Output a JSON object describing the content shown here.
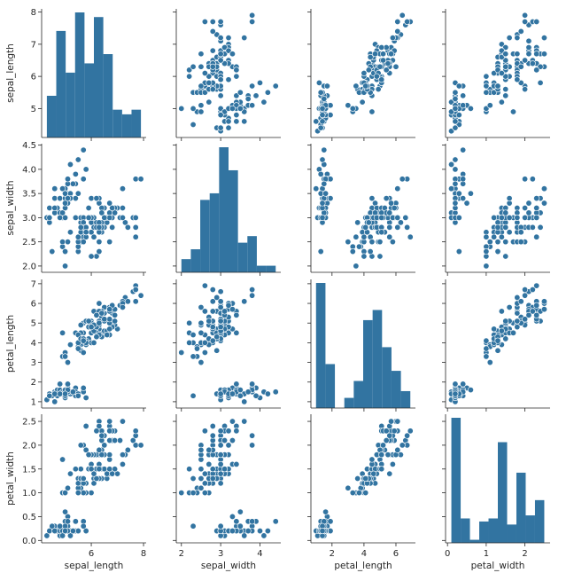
{
  "chart_data": {
    "type": "scatter",
    "title": "",
    "variables": [
      "sepal_length",
      "sepal_width",
      "petal_length",
      "petal_width"
    ],
    "axis_labels": {
      "x": [
        "sepal_length",
        "sepal_width",
        "petal_length",
        "petal_width"
      ],
      "y": [
        "sepal_length",
        "sepal_width",
        "petal_length",
        "petal_width"
      ]
    },
    "ranges": {
      "sepal_length": [
        4.1,
        8.1
      ],
      "sepal_width": [
        1.87,
        4.53
      ],
      "petal_length": [
        0.68,
        7.22
      ],
      "petal_width": [
        -0.05,
        2.65
      ]
    },
    "ticks": {
      "x": {
        "sepal_length": [
          "6",
          "8"
        ],
        "sepal_width": [
          "2",
          "3",
          "4"
        ],
        "petal_length": [
          "2",
          "4",
          "6"
        ],
        "petal_width": [
          "0",
          "1",
          "2"
        ]
      },
      "y": {
        "sepal_length": [
          "5",
          "6",
          "7",
          "8"
        ],
        "sepal_width": [
          "2.0",
          "2.5",
          "3.0",
          "3.5",
          "4.0",
          "4.5"
        ],
        "petal_length": [
          "1",
          "2",
          "3",
          "4",
          "5",
          "6",
          "7"
        ],
        "petal_width": [
          "0.0",
          "0.5",
          "1.0",
          "1.5",
          "2.0",
          "2.5"
        ]
      }
    },
    "histograms": {
      "sepal_length": {
        "bins": [
          4.3,
          4.66,
          5.02,
          5.38,
          5.74,
          6.1,
          6.46,
          6.82,
          7.18,
          7.54,
          7.9
        ],
        "counts": [
          9,
          23,
          14,
          27,
          16,
          26,
          18,
          6,
          5,
          6
        ]
      },
      "sepal_width": {
        "bins": [
          2.0,
          2.24,
          2.48,
          2.72,
          2.96,
          3.2,
          3.44,
          3.68,
          3.92,
          4.16,
          4.4
        ],
        "counts": [
          4,
          7,
          22,
          24,
          38,
          31,
          9,
          11,
          2,
          2
        ]
      },
      "petal_length": {
        "bins": [
          1.0,
          1.59,
          2.18,
          2.77,
          3.36,
          3.95,
          4.54,
          5.13,
          5.72,
          6.31,
          6.9
        ],
        "counts": [
          37,
          13,
          0,
          3,
          8,
          26,
          29,
          18,
          11,
          5
        ]
      },
      "petal_width": {
        "bins": [
          0.1,
          0.34,
          0.58,
          0.82,
          1.06,
          1.3,
          1.54,
          1.78,
          2.02,
          2.26,
          2.5
        ],
        "counts": [
          41,
          8,
          1,
          7,
          8,
          33,
          6,
          23,
          9,
          14
        ]
      }
    },
    "points": [
      [
        5.1,
        3.5,
        1.4,
        0.2
      ],
      [
        4.9,
        3.0,
        1.4,
        0.2
      ],
      [
        4.7,
        3.2,
        1.3,
        0.2
      ],
      [
        4.6,
        3.1,
        1.5,
        0.2
      ],
      [
        5.0,
        3.6,
        1.4,
        0.2
      ],
      [
        5.4,
        3.9,
        1.7,
        0.4
      ],
      [
        4.6,
        3.4,
        1.4,
        0.3
      ],
      [
        5.0,
        3.4,
        1.5,
        0.2
      ],
      [
        4.4,
        2.9,
        1.4,
        0.2
      ],
      [
        4.9,
        3.1,
        1.5,
        0.1
      ],
      [
        5.4,
        3.7,
        1.5,
        0.2
      ],
      [
        4.8,
        3.4,
        1.6,
        0.2
      ],
      [
        4.8,
        3.0,
        1.4,
        0.1
      ],
      [
        4.3,
        3.0,
        1.1,
        0.1
      ],
      [
        5.8,
        4.0,
        1.2,
        0.2
      ],
      [
        5.7,
        4.4,
        1.5,
        0.4
      ],
      [
        5.4,
        3.9,
        1.3,
        0.4
      ],
      [
        5.1,
        3.5,
        1.4,
        0.3
      ],
      [
        5.7,
        3.8,
        1.7,
        0.3
      ],
      [
        5.1,
        3.8,
        1.5,
        0.3
      ],
      [
        5.4,
        3.4,
        1.7,
        0.2
      ],
      [
        5.1,
        3.7,
        1.5,
        0.4
      ],
      [
        4.6,
        3.6,
        1.0,
        0.2
      ],
      [
        5.1,
        3.3,
        1.7,
        0.5
      ],
      [
        4.8,
        3.4,
        1.9,
        0.2
      ],
      [
        5.0,
        3.0,
        1.6,
        0.2
      ],
      [
        5.0,
        3.4,
        1.6,
        0.4
      ],
      [
        5.2,
        3.5,
        1.5,
        0.2
      ],
      [
        5.2,
        3.4,
        1.4,
        0.2
      ],
      [
        4.7,
        3.2,
        1.6,
        0.2
      ],
      [
        4.8,
        3.1,
        1.6,
        0.2
      ],
      [
        5.4,
        3.4,
        1.5,
        0.4
      ],
      [
        5.2,
        4.1,
        1.5,
        0.1
      ],
      [
        5.5,
        4.2,
        1.4,
        0.2
      ],
      [
        4.9,
        3.1,
        1.5,
        0.2
      ],
      [
        5.0,
        3.2,
        1.2,
        0.2
      ],
      [
        5.5,
        3.5,
        1.3,
        0.2
      ],
      [
        4.9,
        3.6,
        1.4,
        0.1
      ],
      [
        4.4,
        3.0,
        1.3,
        0.2
      ],
      [
        5.1,
        3.4,
        1.5,
        0.2
      ],
      [
        5.0,
        3.5,
        1.3,
        0.3
      ],
      [
        4.5,
        2.3,
        1.3,
        0.3
      ],
      [
        4.4,
        3.2,
        1.3,
        0.2
      ],
      [
        5.0,
        3.5,
        1.6,
        0.6
      ],
      [
        5.1,
        3.8,
        1.9,
        0.4
      ],
      [
        4.8,
        3.0,
        1.4,
        0.3
      ],
      [
        5.1,
        3.8,
        1.6,
        0.2
      ],
      [
        4.6,
        3.2,
        1.4,
        0.2
      ],
      [
        5.3,
        3.7,
        1.5,
        0.2
      ],
      [
        5.0,
        3.3,
        1.4,
        0.2
      ],
      [
        7.0,
        3.2,
        4.7,
        1.4
      ],
      [
        6.4,
        3.2,
        4.5,
        1.5
      ],
      [
        6.9,
        3.1,
        4.9,
        1.5
      ],
      [
        5.5,
        2.3,
        4.0,
        1.3
      ],
      [
        6.5,
        2.8,
        4.6,
        1.5
      ],
      [
        5.7,
        2.8,
        4.5,
        1.3
      ],
      [
        6.3,
        3.3,
        4.7,
        1.6
      ],
      [
        4.9,
        2.4,
        3.3,
        1.0
      ],
      [
        6.6,
        2.9,
        4.6,
        1.3
      ],
      [
        5.2,
        2.7,
        3.9,
        1.4
      ],
      [
        5.0,
        2.0,
        3.5,
        1.0
      ],
      [
        5.9,
        3.0,
        4.2,
        1.5
      ],
      [
        6.0,
        2.2,
        4.0,
        1.0
      ],
      [
        6.1,
        2.9,
        4.7,
        1.4
      ],
      [
        5.6,
        2.9,
        3.6,
        1.3
      ],
      [
        6.7,
        3.1,
        4.4,
        1.4
      ],
      [
        5.6,
        3.0,
        4.5,
        1.5
      ],
      [
        5.8,
        2.7,
        4.1,
        1.0
      ],
      [
        6.2,
        2.2,
        4.5,
        1.5
      ],
      [
        5.6,
        2.5,
        3.9,
        1.1
      ],
      [
        5.9,
        3.2,
        4.8,
        1.8
      ],
      [
        6.1,
        2.8,
        4.0,
        1.3
      ],
      [
        6.3,
        2.5,
        4.9,
        1.5
      ],
      [
        6.1,
        2.8,
        4.7,
        1.2
      ],
      [
        6.4,
        2.9,
        4.3,
        1.3
      ],
      [
        6.6,
        3.0,
        4.4,
        1.4
      ],
      [
        6.8,
        2.8,
        4.8,
        1.4
      ],
      [
        6.7,
        3.0,
        5.0,
        1.7
      ],
      [
        6.0,
        2.9,
        4.5,
        1.5
      ],
      [
        5.7,
        2.6,
        3.5,
        1.0
      ],
      [
        5.5,
        2.4,
        3.8,
        1.1
      ],
      [
        5.5,
        2.4,
        3.7,
        1.0
      ],
      [
        5.8,
        2.7,
        3.9,
        1.2
      ],
      [
        6.0,
        2.7,
        5.1,
        1.6
      ],
      [
        5.4,
        3.0,
        4.5,
        1.5
      ],
      [
        6.0,
        3.4,
        4.5,
        1.6
      ],
      [
        6.7,
        3.1,
        4.7,
        1.5
      ],
      [
        6.3,
        2.3,
        4.4,
        1.3
      ],
      [
        5.6,
        3.0,
        4.1,
        1.3
      ],
      [
        5.5,
        2.5,
        4.0,
        1.3
      ],
      [
        5.5,
        2.6,
        4.4,
        1.2
      ],
      [
        6.1,
        3.0,
        4.6,
        1.4
      ],
      [
        5.8,
        2.6,
        4.0,
        1.2
      ],
      [
        5.0,
        2.3,
        3.3,
        1.0
      ],
      [
        5.6,
        2.7,
        4.2,
        1.3
      ],
      [
        5.7,
        3.0,
        4.2,
        1.2
      ],
      [
        5.7,
        2.9,
        4.2,
        1.3
      ],
      [
        6.2,
        2.9,
        4.3,
        1.3
      ],
      [
        5.1,
        2.5,
        3.0,
        1.1
      ],
      [
        5.7,
        2.8,
        4.1,
        1.3
      ],
      [
        6.3,
        3.3,
        6.0,
        2.5
      ],
      [
        5.8,
        2.7,
        5.1,
        1.9
      ],
      [
        7.1,
        3.0,
        5.9,
        2.1
      ],
      [
        6.3,
        2.9,
        5.6,
        1.8
      ],
      [
        6.5,
        3.0,
        5.8,
        2.2
      ],
      [
        7.6,
        3.0,
        6.6,
        2.1
      ],
      [
        4.9,
        2.5,
        4.5,
        1.7
      ],
      [
        7.3,
        2.9,
        6.3,
        1.8
      ],
      [
        6.7,
        2.5,
        5.8,
        1.8
      ],
      [
        7.2,
        3.6,
        6.1,
        2.5
      ],
      [
        6.5,
        3.2,
        5.1,
        2.0
      ],
      [
        6.4,
        2.7,
        5.3,
        1.9
      ],
      [
        6.8,
        3.0,
        5.5,
        2.1
      ],
      [
        5.7,
        2.5,
        5.0,
        2.0
      ],
      [
        5.8,
        2.8,
        5.1,
        2.4
      ],
      [
        6.4,
        3.2,
        5.3,
        2.3
      ],
      [
        6.5,
        3.0,
        5.5,
        1.8
      ],
      [
        7.7,
        3.8,
        6.7,
        2.2
      ],
      [
        7.7,
        2.6,
        6.9,
        2.3
      ],
      [
        6.0,
        2.2,
        5.0,
        1.5
      ],
      [
        6.9,
        3.2,
        5.7,
        2.3
      ],
      [
        5.6,
        2.8,
        4.9,
        2.0
      ],
      [
        7.7,
        2.8,
        6.7,
        2.0
      ],
      [
        6.3,
        2.7,
        4.9,
        1.8
      ],
      [
        6.7,
        3.3,
        5.7,
        2.1
      ],
      [
        7.2,
        3.2,
        6.0,
        1.8
      ],
      [
        6.2,
        2.8,
        4.8,
        1.8
      ],
      [
        6.1,
        3.0,
        4.9,
        1.8
      ],
      [
        6.4,
        2.8,
        5.6,
        2.1
      ],
      [
        7.2,
        3.0,
        5.8,
        1.6
      ],
      [
        7.4,
        2.8,
        6.1,
        1.9
      ],
      [
        7.9,
        3.8,
        6.4,
        2.0
      ],
      [
        6.4,
        2.8,
        5.6,
        2.2
      ],
      [
        6.3,
        2.8,
        5.1,
        1.5
      ],
      [
        6.1,
        2.6,
        5.6,
        1.4
      ],
      [
        7.7,
        3.0,
        6.1,
        2.3
      ],
      [
        6.3,
        3.4,
        5.6,
        2.4
      ],
      [
        6.4,
        3.1,
        5.5,
        1.8
      ],
      [
        6.0,
        3.0,
        4.8,
        1.8
      ],
      [
        6.9,
        3.1,
        5.4,
        2.1
      ],
      [
        6.7,
        3.1,
        5.6,
        2.4
      ],
      [
        6.9,
        3.1,
        5.1,
        2.3
      ],
      [
        5.8,
        2.7,
        5.1,
        1.9
      ],
      [
        6.8,
        3.2,
        5.9,
        2.3
      ],
      [
        6.7,
        3.3,
        5.7,
        2.5
      ],
      [
        6.7,
        3.0,
        5.2,
        2.3
      ],
      [
        6.3,
        2.5,
        5.0,
        1.9
      ],
      [
        6.5,
        3.0,
        5.2,
        2.0
      ],
      [
        6.2,
        3.4,
        5.4,
        2.3
      ],
      [
        5.9,
        3.0,
        5.1,
        1.8
      ]
    ],
    "colors": {
      "marker": "#3274a1",
      "edge": "#ffffff",
      "axis": "#262626"
    },
    "grid": false,
    "legend": "none"
  }
}
